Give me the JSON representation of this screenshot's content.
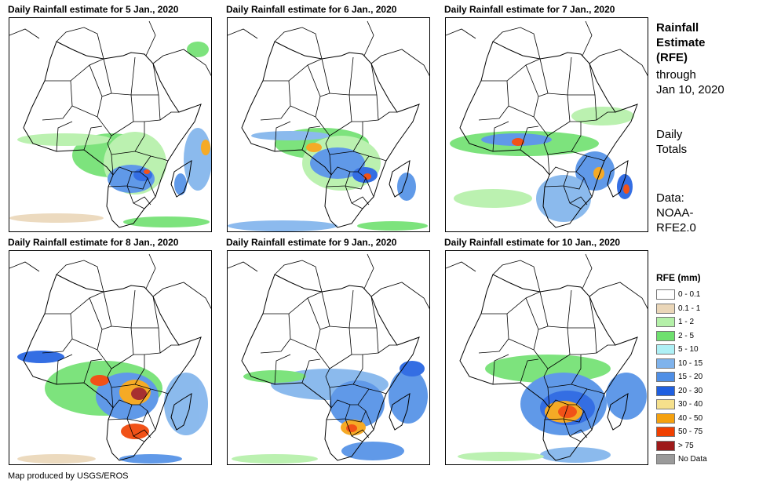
{
  "panels": [
    {
      "title": "Daily Rainfall estimate for 5 Jan., 2020",
      "rain_pattern": "southern Africa, Madagascar, light ITCZ band"
    },
    {
      "title": "Daily Rainfall estimate for 6 Jan., 2020",
      "rain_pattern": "central and southern Africa, Gulf of Guinea"
    },
    {
      "title": "Daily Rainfall estimate for 7 Jan., 2020",
      "rain_pattern": "Gulf of Guinea band, Mozambique, Madagascar"
    },
    {
      "title": "Daily Rainfall estimate for 8 Jan., 2020",
      "rain_pattern": "heavy over Angola, Zambia, Zimbabwe"
    },
    {
      "title": "Daily Rainfall estimate for 9 Jan., 2020",
      "rain_pattern": "Zimbabwe, southeast Africa, Indian Ocean"
    },
    {
      "title": "Daily Rainfall estimate for 10 Jan., 2020",
      "rain_pattern": "heavy over Zambia and Zimbabwe"
    }
  ],
  "side": {
    "title_line1": "Rainfall",
    "title_line2": "Estimate",
    "title_line3": "(RFE)",
    "through_line1": "through",
    "through_line2": "Jan 10, 2020",
    "totals_line1": "Daily",
    "totals_line2": "Totals",
    "data_line1": "Data:",
    "data_line2": "NOAA-",
    "data_line3": "RFE2.0"
  },
  "legend": {
    "title": "RFE (mm)",
    "items": [
      {
        "label": "0 - 0.1",
        "color": "#ffffff"
      },
      {
        "label": "0.1 - 1",
        "color": "#ead6b8"
      },
      {
        "label": "1 - 2",
        "color": "#b4f0a8"
      },
      {
        "label": "2 - 5",
        "color": "#6fe06f"
      },
      {
        "label": "5 - 10",
        "color": "#aef0f5"
      },
      {
        "label": "10 - 15",
        "color": "#7fb3ec"
      },
      {
        "label": "15 - 20",
        "color": "#4f8fe6"
      },
      {
        "label": "20 - 30",
        "color": "#1f5fe0"
      },
      {
        "label": "30 - 40",
        "color": "#f5e08c"
      },
      {
        "label": "40 - 50",
        "color": "#f5a10f"
      },
      {
        "label": "50 - 75",
        "color": "#f04000"
      },
      {
        "label": "> 75",
        "color": "#9e1a1a"
      },
      {
        "label": "No Data",
        "color": "#9a9a9a"
      }
    ]
  },
  "credit": "Map produced by USGS/EROS"
}
